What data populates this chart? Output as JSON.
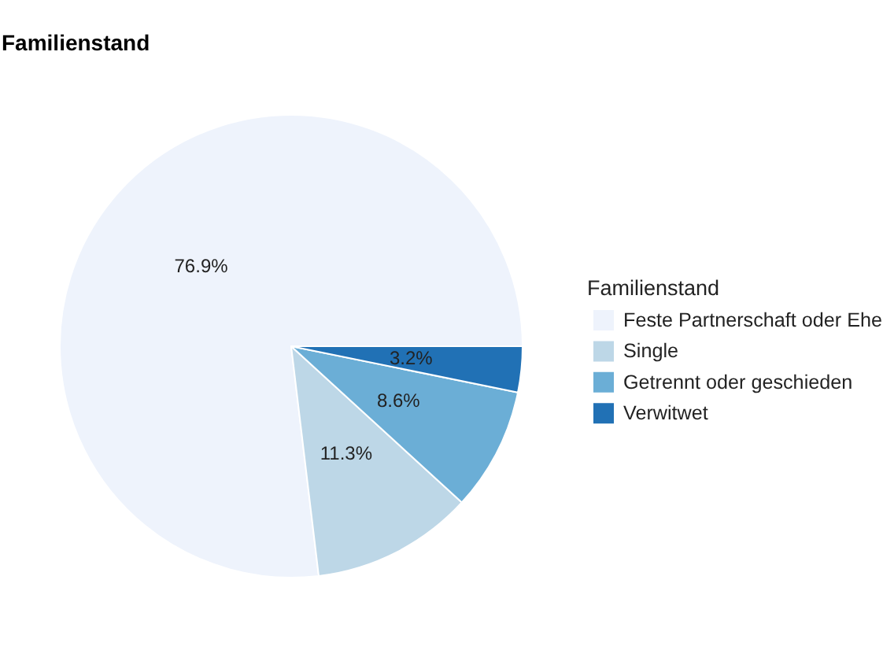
{
  "chart_data": {
    "type": "pie",
    "title": "Familienstand",
    "legend_title": "Familienstand",
    "categories": [
      "Feste Partnerschaft oder Ehe",
      "Single",
      "Getrennt oder geschieden",
      "Verwitwet"
    ],
    "values": [
      76.9,
      11.3,
      8.6,
      3.2
    ],
    "colors": [
      "#eef3fc",
      "#bdd7e7",
      "#6baed6",
      "#2171b5"
    ],
    "value_labels": [
      "76.9%",
      "11.3%",
      "8.6%",
      "3.2%"
    ],
    "legend": "right"
  }
}
